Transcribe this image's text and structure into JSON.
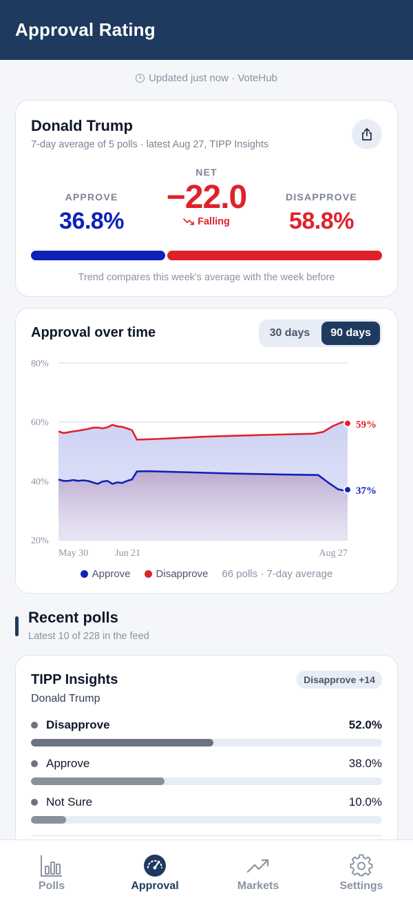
{
  "header": {
    "title": "Approval Rating"
  },
  "updated": {
    "text": "Updated just now · VoteHub"
  },
  "summary": {
    "name": "Donald Trump",
    "subtitle": "7-day average of 5 polls · latest Aug 27, TIPP Insights",
    "approve_label": "APPROVE",
    "approve_value": "36.8%",
    "approve_pct": 36.8,
    "net_label": "NET",
    "net_value": "−22.0",
    "trend_label": "Falling",
    "disapprove_label": "DISAPPROVE",
    "disapprove_value": "58.8%",
    "disapprove_pct": 58.8,
    "trend_note": "Trend compares this week's average with the week before",
    "share_icon": "share-icon"
  },
  "chart": {
    "title": "Approval over time",
    "range_options": [
      "30 days",
      "90 days"
    ],
    "selected_range": "90 days",
    "legend_approve": "Approve",
    "legend_disapprove": "Disapprove",
    "legend_note": "66 polls · 7-day average",
    "approve_end_label": "37%",
    "disapprove_end_label": "59%"
  },
  "chart_data": {
    "type": "line",
    "x_tick_labels": [
      "May 30",
      "Jun 21",
      "Aug 27"
    ],
    "y_tick_labels": [
      "80%",
      "60%",
      "40%",
      "20%"
    ],
    "ylim": [
      20,
      80
    ],
    "grid": true,
    "legend": "bottom",
    "series": [
      {
        "name": "Approve",
        "color": "#0e22b8",
        "points": [
          [
            0,
            40.5
          ],
          [
            1,
            40
          ],
          [
            2,
            40
          ],
          [
            3,
            40.3
          ],
          [
            4,
            40
          ],
          [
            5,
            40.2
          ],
          [
            6,
            40
          ],
          [
            7,
            39.5
          ],
          [
            8,
            39
          ],
          [
            9,
            39.8
          ],
          [
            10,
            40
          ],
          [
            11,
            39
          ],
          [
            12,
            39.5
          ],
          [
            13,
            39.3
          ],
          [
            14,
            40
          ],
          [
            15,
            40.5
          ],
          [
            16,
            43.2
          ],
          [
            18,
            43.3
          ],
          [
            25,
            43
          ],
          [
            35,
            42.5
          ],
          [
            45,
            42.2
          ],
          [
            53,
            42
          ],
          [
            55,
            39.5
          ],
          [
            57,
            37.2
          ],
          [
            58,
            36.8
          ],
          [
            59,
            37
          ]
        ]
      },
      {
        "name": "Disapprove",
        "color": "#e0212b",
        "points": [
          [
            0,
            56.8
          ],
          [
            1,
            56.2
          ],
          [
            2,
            56.5
          ],
          [
            3,
            56.8
          ],
          [
            4,
            57
          ],
          [
            5,
            57.3
          ],
          [
            6,
            57.6
          ],
          [
            7,
            58
          ],
          [
            8,
            58.1
          ],
          [
            9,
            57.8
          ],
          [
            10,
            58.2
          ],
          [
            11,
            59
          ],
          [
            12,
            58.5
          ],
          [
            13,
            58.3
          ],
          [
            14,
            57.8
          ],
          [
            15,
            57.2
          ],
          [
            16,
            54
          ],
          [
            20,
            54.2
          ],
          [
            30,
            55
          ],
          [
            40,
            55.5
          ],
          [
            52,
            56
          ],
          [
            54,
            56.6
          ],
          [
            56,
            58.6
          ],
          [
            58,
            60
          ],
          [
            59,
            59.5
          ]
        ]
      }
    ]
  },
  "recent": {
    "title": "Recent polls",
    "subtitle": "Latest 10 of 228 in the feed"
  },
  "poll": {
    "pollster": "TIPP Insights",
    "subject": "Donald Trump",
    "badge": "Disapprove +14",
    "answers": [
      {
        "label": "Disapprove",
        "value": "52.0%",
        "pct": 52.0,
        "color": "#6b7280",
        "bold": true
      },
      {
        "label": "Approve",
        "value": "38.0%",
        "pct": 38.0,
        "color": "#8a8f9c",
        "bold": false
      },
      {
        "label": "Not Sure",
        "value": "10.0%",
        "pct": 10.0,
        "color": "#8a8f9c",
        "bold": false
      }
    ]
  },
  "nav": {
    "items": [
      {
        "label": "Polls",
        "icon": "bar-chart-icon",
        "active": false
      },
      {
        "label": "Approval",
        "icon": "gauge-icon",
        "active": true
      },
      {
        "label": "Markets",
        "icon": "trend-up-icon",
        "active": false
      },
      {
        "label": "Settings",
        "icon": "gear-icon",
        "active": false
      }
    ]
  }
}
